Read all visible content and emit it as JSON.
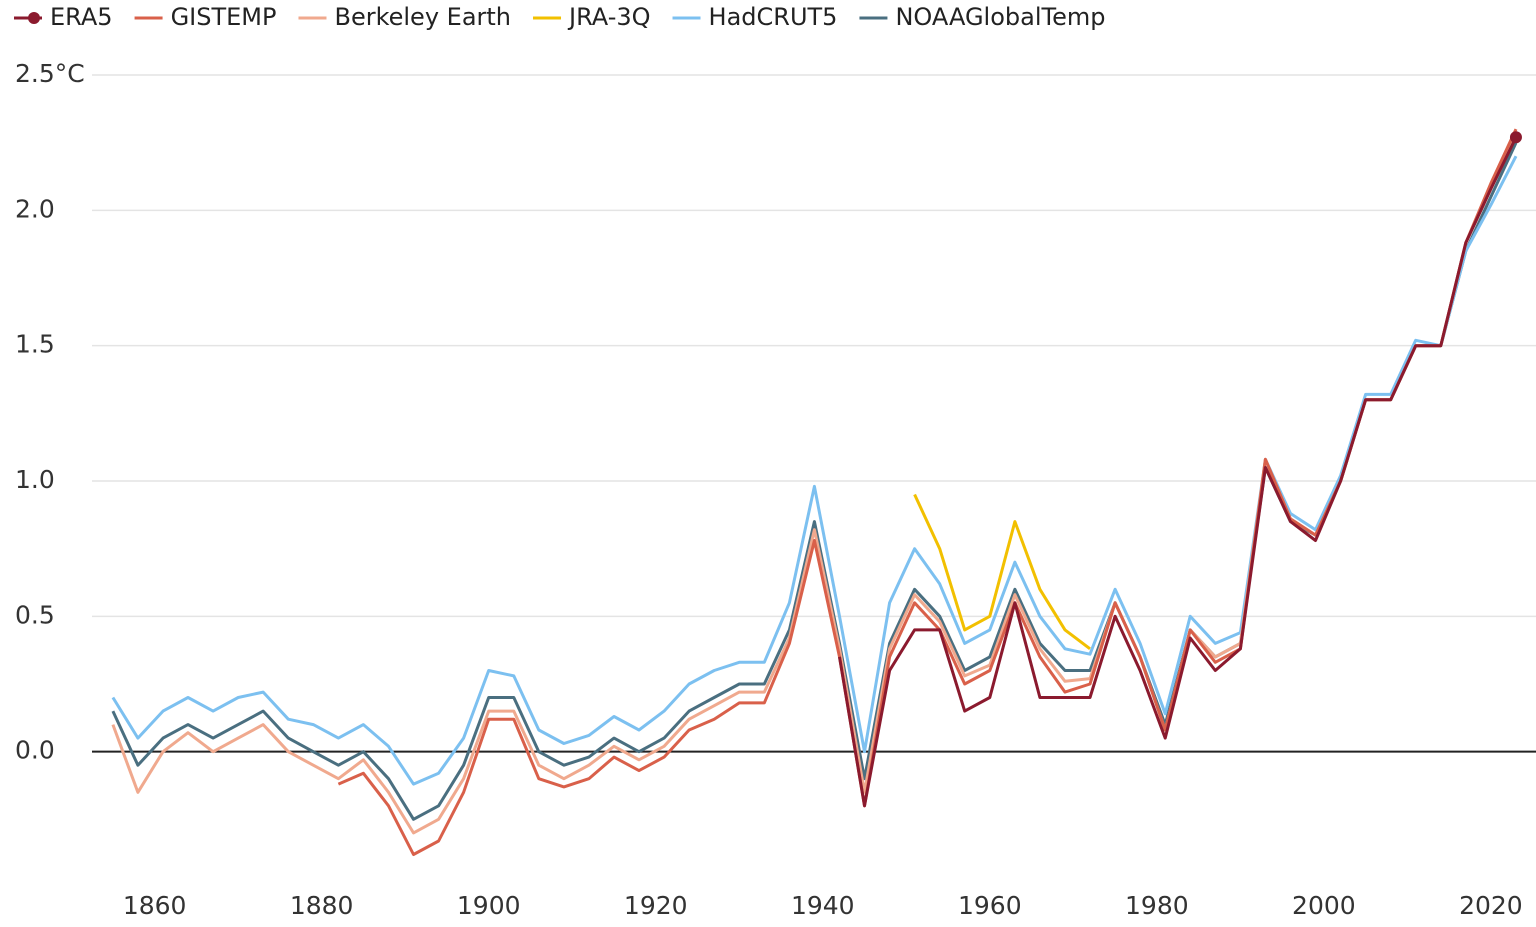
{
  "chart_data": {
    "type": "line",
    "x": [
      1855,
      1858,
      1861,
      1864,
      1867,
      1870,
      1873,
      1876,
      1879,
      1882,
      1885,
      1888,
      1891,
      1894,
      1897,
      1900,
      1903,
      1906,
      1909,
      1912,
      1915,
      1918,
      1921,
      1924,
      1927,
      1930,
      1933,
      1936,
      1939,
      1942,
      1945,
      1948,
      1951,
      1954,
      1957,
      1960,
      1963,
      1966,
      1969,
      1972,
      1975,
      1978,
      1981,
      1984,
      1987,
      1990,
      1993,
      1996,
      1999,
      2002,
      2005,
      2008,
      2011,
      2014,
      2017,
      2020,
      2023
    ],
    "series": [
      {
        "name": "ERA5",
        "color": "#8b1a2e",
        "values": [
          null,
          null,
          null,
          null,
          null,
          null,
          null,
          null,
          null,
          null,
          null,
          null,
          null,
          null,
          null,
          null,
          null,
          null,
          null,
          null,
          null,
          null,
          null,
          null,
          null,
          null,
          null,
          null,
          null,
          0.35,
          -0.2,
          0.3,
          0.45,
          0.45,
          0.15,
          0.2,
          0.55,
          0.2,
          0.2,
          0.2,
          0.5,
          0.3,
          0.05,
          0.42,
          0.3,
          0.38,
          1.05,
          0.85,
          0.78,
          1.0,
          1.3,
          1.3,
          1.5,
          1.5,
          1.88,
          2.08,
          2.27
        ]
      },
      {
        "name": "GISTEMP",
        "color": "#d9604a",
        "values": [
          null,
          null,
          null,
          null,
          null,
          null,
          null,
          null,
          null,
          -0.12,
          -0.08,
          -0.2,
          -0.38,
          -0.33,
          -0.15,
          0.12,
          0.12,
          -0.1,
          -0.13,
          -0.1,
          -0.02,
          -0.07,
          -0.02,
          0.08,
          0.12,
          0.18,
          0.18,
          0.4,
          0.78,
          0.35,
          -0.2,
          0.35,
          0.55,
          0.45,
          0.25,
          0.3,
          0.55,
          0.35,
          0.22,
          0.25,
          0.55,
          0.35,
          0.08,
          0.45,
          0.33,
          0.38,
          1.08,
          0.86,
          0.8,
          1.0,
          1.3,
          1.3,
          1.5,
          1.5,
          1.88,
          2.1,
          2.3
        ]
      },
      {
        "name": "Berkeley Earth",
        "color": "#f0a98e",
        "values": [
          0.1,
          -0.15,
          0.0,
          0.07,
          0.0,
          0.05,
          0.1,
          0.0,
          -0.05,
          -0.1,
          -0.03,
          -0.15,
          -0.3,
          -0.25,
          -0.1,
          0.15,
          0.15,
          -0.05,
          -0.1,
          -0.05,
          0.02,
          -0.03,
          0.02,
          0.12,
          0.17,
          0.22,
          0.22,
          0.42,
          0.82,
          0.38,
          -0.15,
          0.38,
          0.58,
          0.48,
          0.28,
          0.32,
          0.58,
          0.38,
          0.26,
          0.27,
          0.55,
          0.35,
          0.08,
          0.45,
          0.35,
          0.4,
          1.08,
          0.86,
          0.8,
          1.0,
          1.3,
          1.3,
          1.5,
          1.5,
          1.88,
          2.08,
          2.28
        ]
      },
      {
        "name": "JRA-3Q",
        "color": "#f2c000",
        "values": [
          null,
          null,
          null,
          null,
          null,
          null,
          null,
          null,
          null,
          null,
          null,
          null,
          null,
          null,
          null,
          null,
          null,
          null,
          null,
          null,
          null,
          null,
          null,
          null,
          null,
          null,
          null,
          null,
          null,
          null,
          null,
          null,
          0.95,
          0.75,
          0.45,
          0.5,
          0.85,
          0.6,
          0.45,
          0.38,
          null,
          null,
          null,
          null,
          null,
          null,
          null,
          null,
          null,
          null,
          null,
          null,
          null,
          null,
          null,
          null,
          null
        ]
      },
      {
        "name": "HadCRUT5",
        "color": "#7cc0f0",
        "values": [
          0.2,
          0.05,
          0.15,
          0.2,
          0.15,
          0.2,
          0.22,
          0.12,
          0.1,
          0.05,
          0.1,
          0.02,
          -0.12,
          -0.08,
          0.05,
          0.3,
          0.28,
          0.08,
          0.03,
          0.06,
          0.13,
          0.08,
          0.15,
          0.25,
          0.3,
          0.33,
          0.33,
          0.55,
          0.98,
          0.5,
          0.0,
          0.55,
          0.75,
          0.62,
          0.4,
          0.45,
          0.7,
          0.5,
          0.38,
          0.36,
          0.6,
          0.4,
          0.14,
          0.5,
          0.4,
          0.44,
          1.08,
          0.88,
          0.82,
          1.02,
          1.32,
          1.32,
          1.52,
          1.5,
          1.85,
          2.02,
          2.2
        ]
      },
      {
        "name": "NOAAGlobalTemp",
        "color": "#4a6f80",
        "values": [
          0.15,
          -0.05,
          0.05,
          0.1,
          0.05,
          0.1,
          0.15,
          0.05,
          0.0,
          -0.05,
          0.0,
          -0.1,
          -0.25,
          -0.2,
          -0.05,
          0.2,
          0.2,
          0.0,
          -0.05,
          -0.02,
          0.05,
          0.0,
          0.05,
          0.15,
          0.2,
          0.25,
          0.25,
          0.45,
          0.85,
          0.4,
          -0.1,
          0.4,
          0.6,
          0.5,
          0.3,
          0.35,
          0.6,
          0.4,
          0.3,
          0.3,
          0.55,
          0.35,
          0.1,
          0.45,
          0.35,
          0.4,
          1.05,
          0.85,
          0.8,
          1.0,
          1.3,
          1.3,
          1.5,
          1.5,
          1.85,
          2.05,
          2.25
        ]
      }
    ],
    "xlim": [
      1852.5,
      2025.4
    ],
    "xticks": [
      1860,
      1880,
      1900,
      1920,
      1940,
      1960,
      1980,
      2000,
      2020
    ],
    "ylim": [
      -0.5,
      2.5
    ],
    "yticks": [
      {
        "value": 0,
        "label": "0.0"
      },
      0.5,
      {
        "value": 1,
        "label": "1.0"
      },
      1.5,
      {
        "value": 2,
        "label": "2.0"
      },
      {
        "value": 2.5,
        "label": "2.5°C"
      }
    ],
    "grid": true,
    "legend": "top-left"
  }
}
